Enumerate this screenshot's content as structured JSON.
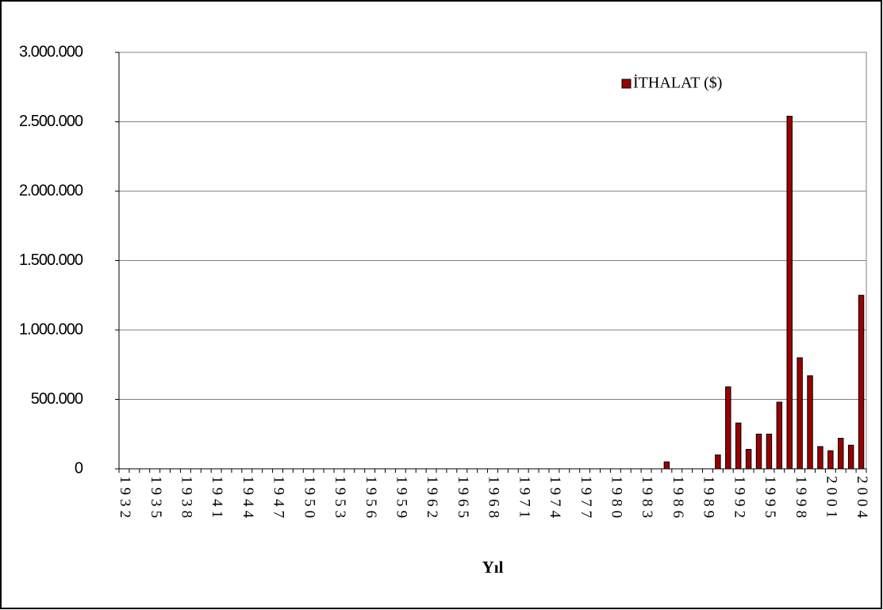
{
  "chart_data": {
    "type": "bar",
    "x_label": "Yıl",
    "categories": [
      "1932",
      null,
      null,
      "1935",
      null,
      null,
      "1938",
      null,
      null,
      "1941",
      null,
      null,
      "1944",
      null,
      null,
      "1947",
      null,
      null,
      "1950",
      null,
      null,
      "1953",
      null,
      null,
      "1956",
      null,
      null,
      "1959",
      null,
      null,
      "1962",
      null,
      null,
      "1965",
      null,
      null,
      "1968",
      null,
      null,
      "1971",
      null,
      null,
      "1974",
      null,
      null,
      "1977",
      null,
      null,
      "1980",
      null,
      null,
      "1983",
      null,
      null,
      "1986",
      null,
      null,
      "1989",
      null,
      null,
      "1992",
      null,
      null,
      "1995",
      null,
      null,
      "1998",
      null,
      null,
      "2001",
      null,
      null,
      "2004"
    ],
    "series": [
      {
        "name": "İTHALAT ($)",
        "color": "#990000",
        "values": [
          0,
          0,
          0,
          0,
          0,
          0,
          0,
          0,
          0,
          0,
          0,
          0,
          0,
          0,
          0,
          0,
          0,
          0,
          0,
          0,
          0,
          0,
          0,
          0,
          0,
          0,
          0,
          0,
          0,
          0,
          0,
          0,
          0,
          0,
          0,
          0,
          0,
          0,
          0,
          0,
          0,
          0,
          0,
          0,
          0,
          0,
          0,
          0,
          0,
          0,
          0,
          0,
          0,
          50000,
          0,
          0,
          0,
          0,
          100000,
          590000,
          330000,
          140000,
          250000,
          250000,
          480000,
          2540000,
          800000,
          670000,
          160000,
          130000,
          220000,
          170000,
          1250000
        ]
      }
    ],
    "ylim": [
      0,
      3000000
    ],
    "yticks": [
      0,
      {
        "value": 500000,
        "label": "500.000"
      },
      {
        "value": 1000000,
        "label": "1.000.000"
      },
      {
        "value": 1500000,
        "label": "1.500.000"
      },
      {
        "value": 2000000,
        "label": "2.000.000"
      },
      {
        "value": 2500000,
        "label": "2.500.000"
      },
      {
        "value": 3000000,
        "label": "3.000.000"
      }
    ],
    "grid": true,
    "legend": "top-right"
  }
}
